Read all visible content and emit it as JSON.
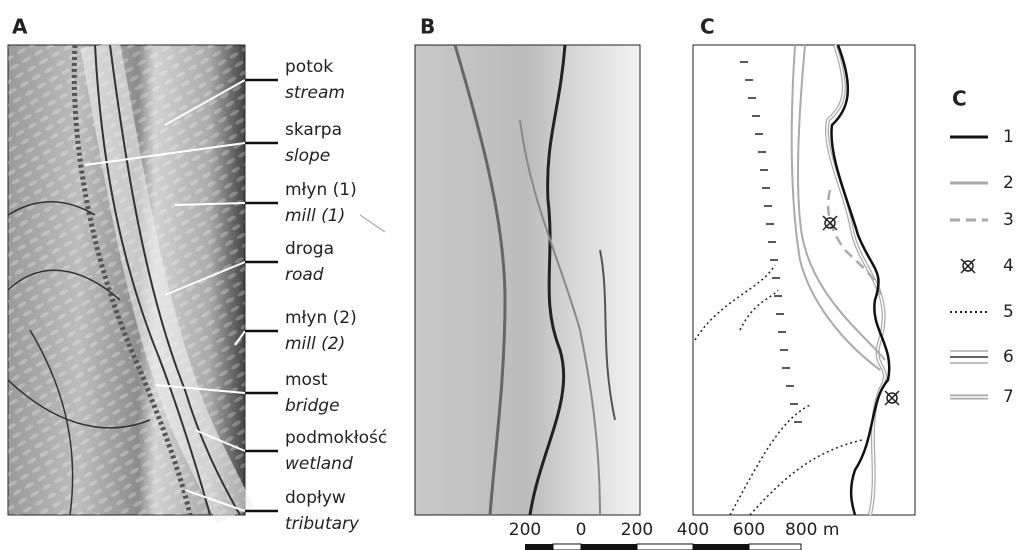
{
  "panels": [
    {
      "label": "A"
    },
    {
      "label": "B"
    },
    {
      "label": "C"
    }
  ],
  "annotations": [
    {
      "pl": "potok",
      "en": "stream"
    },
    {
      "pl": "skarpa",
      "en": "slope"
    },
    {
      "pl": "młyn (1)",
      "en": "mill (1)"
    },
    {
      "pl": "droga",
      "en": "road"
    },
    {
      "pl": "młyn (2)",
      "en": "mill (2)"
    },
    {
      "pl": "most",
      "en": "bridge"
    },
    {
      "pl": "podmokłość",
      "en": "wetland"
    },
    {
      "pl": "dopływ",
      "en": "tributary"
    }
  ],
  "legend": {
    "title": "C",
    "items": [
      "1",
      "2",
      "3",
      "4",
      "5",
      "6",
      "7"
    ]
  },
  "scale_bar": {
    "labels": [
      "200",
      "0",
      "200",
      "400",
      "600",
      "800 m"
    ]
  }
}
